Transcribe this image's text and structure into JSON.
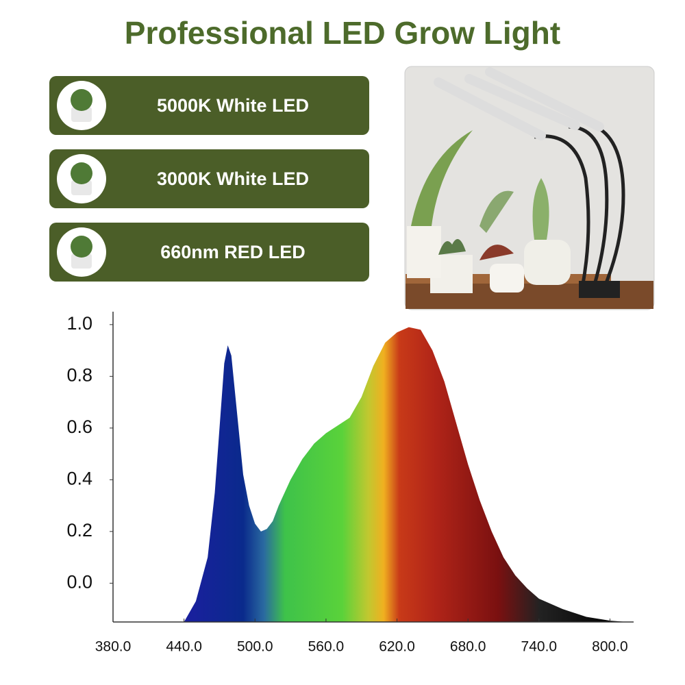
{
  "title": "Professional LED Grow Light",
  "features": [
    "5000K White LED",
    "3000K White LED",
    "660nm RED LED"
  ],
  "chart_data": {
    "type": "area",
    "x": [
      440,
      450,
      460,
      466,
      470,
      474,
      477,
      480,
      485,
      490,
      495,
      500,
      505,
      510,
      515,
      520,
      530,
      540,
      550,
      560,
      570,
      580,
      590,
      600,
      610,
      620,
      630,
      640,
      650,
      660,
      670,
      680,
      690,
      700,
      710,
      720,
      730,
      740,
      760,
      780,
      800,
      815
    ],
    "values": [
      -0.15,
      -0.07,
      0.1,
      0.35,
      0.6,
      0.85,
      0.92,
      0.88,
      0.65,
      0.42,
      0.3,
      0.23,
      0.2,
      0.21,
      0.24,
      0.3,
      0.4,
      0.48,
      0.54,
      0.58,
      0.61,
      0.64,
      0.72,
      0.84,
      0.93,
      0.97,
      0.99,
      0.98,
      0.9,
      0.78,
      0.62,
      0.46,
      0.32,
      0.2,
      0.1,
      0.03,
      -0.02,
      -0.06,
      -0.1,
      -0.13,
      -0.145,
      -0.15
    ],
    "xlim": [
      380,
      820
    ],
    "ylim": [
      -0.15,
      1.05
    ],
    "xticks": [
      {
        "value": 380,
        "label": "380.0"
      },
      {
        "value": 440,
        "label": "440.0"
      },
      {
        "value": 500,
        "label": "500.0"
      },
      {
        "value": 560,
        "label": "560.0"
      },
      {
        "value": 620,
        "label": "620.0"
      },
      {
        "value": 680,
        "label": "680.0"
      },
      {
        "value": 740,
        "label": "740.0"
      },
      {
        "value": 800,
        "label": "800.0"
      }
    ],
    "yticks": [
      {
        "value": 0,
        "label": "0.0"
      },
      {
        "value": 0.2,
        "label": "0.2"
      },
      {
        "value": 0.4,
        "label": "0.4"
      },
      {
        "value": 0.6,
        "label": "0.6"
      },
      {
        "value": 0.8,
        "label": "0.8"
      },
      {
        "value": 1,
        "label": "1.0"
      }
    ]
  }
}
